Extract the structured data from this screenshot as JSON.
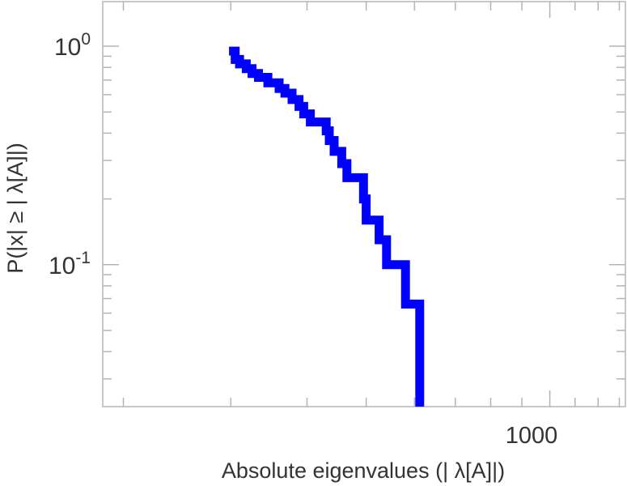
{
  "chart_data": {
    "type": "line",
    "style": "step",
    "title": "",
    "xlabel": "Absolute eigenvalues (|     λ[A]|)",
    "ylabel": "P(|x|  ≥ | λ[A]|)",
    "x_scale": "log",
    "y_scale": "log",
    "xlim": [
      185,
      1330
    ],
    "ylim": [
      0.0224,
      1.6
    ],
    "x_tick_labels": [
      {
        "value": 1000,
        "label": "1000"
      }
    ],
    "y_tick_labels": [
      {
        "value": 1,
        "base": "10",
        "exp": "0"
      },
      {
        "value": 0.1,
        "base": "10",
        "exp": "-1"
      }
    ],
    "grid": false,
    "series": [
      {
        "color": "#0000ff",
        "x": [
          298,
          305,
          310,
          318,
          325,
          333,
          345,
          360,
          368,
          378,
          388,
          395,
          405,
          430,
          435,
          443,
          456,
          465,
          495,
          500,
          525,
          540,
          580,
          612
        ],
        "y": [
          0.95,
          0.87,
          0.83,
          0.79,
          0.75,
          0.72,
          0.68,
          0.64,
          0.61,
          0.57,
          0.53,
          0.49,
          0.45,
          0.41,
          0.37,
          0.33,
          0.29,
          0.25,
          0.2,
          0.16,
          0.13,
          0.1,
          0.066,
          0.033
        ]
      }
    ],
    "end_x": 612,
    "end_y": 0.0224
  }
}
